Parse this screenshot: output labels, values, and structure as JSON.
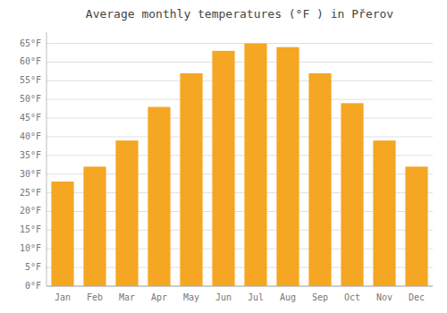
{
  "chart_data": {
    "type": "bar",
    "title": "Average monthly temperatures (°F ) in Přerov",
    "categories": [
      "Jan",
      "Feb",
      "Mar",
      "Apr",
      "May",
      "Jun",
      "Jul",
      "Aug",
      "Sep",
      "Oct",
      "Nov",
      "Dec"
    ],
    "values": [
      28,
      32,
      39,
      48,
      57,
      63,
      65,
      64,
      57,
      49,
      39,
      32
    ],
    "color": "#F5A623",
    "ylim": [
      0,
      68
    ],
    "yticks": [
      {
        "value": 0,
        "label": "0°F"
      },
      {
        "value": 5,
        "label": "5°F"
      },
      {
        "value": 10,
        "label": "10°F"
      },
      {
        "value": 15,
        "label": "15°F"
      },
      {
        "value": 20,
        "label": "20°F"
      },
      {
        "value": 25,
        "label": "25°F"
      },
      {
        "value": 30,
        "label": "30°F"
      },
      {
        "value": 35,
        "label": "35°F"
      },
      {
        "value": 40,
        "label": "40°F"
      },
      {
        "value": 45,
        "label": "45°F"
      },
      {
        "value": 50,
        "label": "50°F"
      },
      {
        "value": 55,
        "label": "55°F"
      },
      {
        "value": 60,
        "label": "60°F"
      },
      {
        "value": 65,
        "label": "65°F"
      }
    ],
    "grid": true
  }
}
